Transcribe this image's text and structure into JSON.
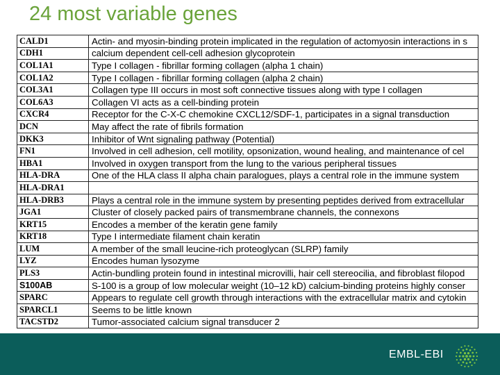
{
  "slide": {
    "title": "24 most variable genes"
  },
  "table": {
    "rows": [
      {
        "gene": "CALD1",
        "description": "Actin- and myosin-binding protein implicated in the regulation of actomyosin interactions in s"
      },
      {
        "gene": "CDH1",
        "description": "calcium dependent cell-cell adhesion glycoprotein"
      },
      {
        "gene": "COL1A1",
        "description": "Type I collagen - fibrillar forming collagen (alpha 1 chain)"
      },
      {
        "gene": "COL1A2",
        "description": "Type I collagen - fibrillar forming collagen (alpha 2 chain)"
      },
      {
        "gene": "COL3A1",
        "description": "Collagen type III occurs in most soft connective tissues along with type I collagen"
      },
      {
        "gene": "COL6A3",
        "description": "Collagen VI acts as a cell-binding protein"
      },
      {
        "gene": "CXCR4",
        "description": "Receptor for the C-X-C chemokine CXCL12/SDF-1, participates in a signal transduction"
      },
      {
        "gene": "DCN",
        "description": "May affect the rate of fibrils formation"
      },
      {
        "gene": "DKK3",
        "description": "Inhibitor of Wnt signaling pathway (Potential)"
      },
      {
        "gene": "FN1",
        "description": "Involved in cell adhesion, cell motility, opsonization, wound healing, and maintenance of cel"
      },
      {
        "gene": "HBA1",
        "description": "Involved in oxygen transport from the lung to the various peripheral tissues"
      },
      {
        "gene": "HLA-DRA",
        "description": "One of the HLA class II alpha chain paralogues, plays a central role in the immune system"
      },
      {
        "gene": "HLA-DRA1",
        "description": ""
      },
      {
        "gene": "HLA-DRB3",
        "description": "Plays a central role in the immune system by presenting peptides derived from extracellular"
      },
      {
        "gene": "JGA1",
        "description": "Cluster of closely packed pairs of transmembrane channels, the connexons"
      },
      {
        "gene": "KRT15",
        "description": "Encodes a member of the keratin gene family"
      },
      {
        "gene": "KRT18",
        "description": "Type I intermediate filament chain keratin"
      },
      {
        "gene": "LUM",
        "description": "A member of the small leucine-rich proteoglycan (SLRP) family"
      },
      {
        "gene": "LYZ",
        "description": "Encodes human lysozyme"
      },
      {
        "gene": "PLS3",
        "description": "Actin-bundling protein found in intestinal microvilli, hair cell stereocilia, and fibroblast filopod"
      },
      {
        "gene": "S100AB",
        "description": "S-100 is a group of low molecular weight (10–12 kD) calcium-binding proteins highly conser"
      },
      {
        "gene": "SPARC",
        "description": "Appears to regulate cell growth through interactions with the extracellular matrix and cytokin"
      },
      {
        "gene": "SPARCL1",
        "description": "Seems to be little known"
      },
      {
        "gene": "TACSTD2",
        "description": "Tumor-associated calcium signal transducer 2"
      }
    ]
  },
  "footer": {
    "brand": "EMBL-EBI",
    "background_color": "#0b5d5a",
    "logo_icon": "embl-ebi-hexagon-logo"
  },
  "colors": {
    "title": "#6aa33a",
    "footer": "#0b5d5a"
  }
}
